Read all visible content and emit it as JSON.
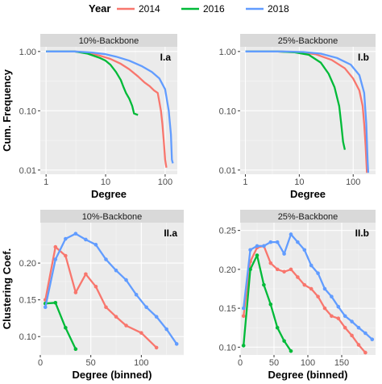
{
  "legend": {
    "title": "Year",
    "entries": [
      {
        "label": "2014",
        "color": "#F8766D"
      },
      {
        "label": "2016",
        "color": "#00BA38"
      },
      {
        "label": "2018",
        "color": "#619CFF"
      }
    ]
  },
  "chart_data": [
    {
      "type": "line",
      "strip": "10%-Backbone",
      "panel_label": "I.a",
      "xlabel": "Degree",
      "ylabel": "Cum. Frequency",
      "xscale": "log",
      "yscale": "log",
      "xlim": [
        0.8,
        160
      ],
      "ylim": [
        0.0085,
        1.2
      ],
      "xticks": [
        1,
        10,
        100
      ],
      "xtick_labels": [
        "1",
        "10",
        "100"
      ],
      "yticks": [
        0.01,
        0.1,
        1
      ],
      "ytick_labels": [
        "0.01",
        "0.10",
        "1.00"
      ],
      "points": false,
      "series": [
        {
          "name": "2014",
          "color": "#F8766D",
          "x": [
            1,
            3,
            5,
            8,
            12,
            18,
            25,
            35,
            45,
            55,
            65,
            75,
            80,
            85,
            90,
            95,
            100,
            105
          ],
          "y": [
            1,
            1,
            0.95,
            0.85,
            0.75,
            0.62,
            0.5,
            0.38,
            0.3,
            0.26,
            0.22,
            0.2,
            0.14,
            0.1,
            0.06,
            0.03,
            0.015,
            0.011
          ]
        },
        {
          "name": "2016",
          "color": "#00BA38",
          "x": [
            1,
            3,
            5,
            8,
            10,
            12,
            15,
            18,
            20,
            22,
            25,
            28,
            30,
            35
          ],
          "y": [
            1,
            1,
            0.92,
            0.78,
            0.7,
            0.6,
            0.45,
            0.33,
            0.25,
            0.2,
            0.16,
            0.12,
            0.09,
            0.085
          ]
        },
        {
          "name": "2018",
          "color": "#619CFF",
          "x": [
            1,
            3,
            6,
            10,
            15,
            25,
            40,
            60,
            80,
            100,
            115,
            125,
            130,
            135
          ],
          "y": [
            1,
            1,
            0.96,
            0.9,
            0.82,
            0.7,
            0.57,
            0.45,
            0.35,
            0.23,
            0.1,
            0.04,
            0.015,
            0.013
          ]
        }
      ]
    },
    {
      "type": "line",
      "strip": "25%-Backbone",
      "panel_label": "I.b",
      "xlabel": "Degree",
      "ylabel": "",
      "xscale": "log",
      "yscale": "log",
      "xlim": [
        0.8,
        260
      ],
      "ylim": [
        0.0085,
        1.2
      ],
      "xticks": [
        1,
        10,
        100
      ],
      "xtick_labels": [
        "1",
        "10",
        "100"
      ],
      "yticks": [
        0.01,
        0.1,
        1
      ],
      "ytick_labels": [
        "0.01",
        "0.10",
        "1.00"
      ],
      "points": false,
      "series": [
        {
          "name": "2014",
          "color": "#F8766D",
          "x": [
            1,
            4,
            10,
            20,
            40,
            70,
            100,
            130,
            150,
            160,
            170,
            175,
            180
          ],
          "y": [
            1,
            1,
            0.97,
            0.9,
            0.72,
            0.52,
            0.35,
            0.22,
            0.12,
            0.06,
            0.025,
            0.015,
            0.009
          ]
        },
        {
          "name": "2016",
          "color": "#00BA38",
          "x": [
            1,
            4,
            8,
            15,
            25,
            35,
            45,
            55,
            60,
            65,
            70
          ],
          "y": [
            1,
            1,
            0.97,
            0.88,
            0.65,
            0.42,
            0.25,
            0.12,
            0.06,
            0.03,
            0.022
          ]
        },
        {
          "name": "2018",
          "color": "#619CFF",
          "x": [
            1,
            5,
            12,
            25,
            50,
            90,
            130,
            160,
            175,
            185,
            190
          ],
          "y": [
            1,
            1,
            0.98,
            0.92,
            0.78,
            0.6,
            0.4,
            0.2,
            0.06,
            0.015,
            0.009
          ]
        }
      ]
    },
    {
      "type": "line",
      "strip": "10%-Backbone",
      "panel_label": "II.a",
      "xlabel": "Degree (binned)",
      "ylabel": "Clustering Coef.",
      "xscale": "linear",
      "yscale": "linear",
      "xlim": [
        0,
        142
      ],
      "ylim": [
        0.075,
        0.255
      ],
      "xticks": [
        0,
        50,
        100
      ],
      "xtick_labels": [
        "0",
        "50",
        "100"
      ],
      "yticks": [
        0.1,
        0.15,
        0.2
      ],
      "ytick_labels": [
        "0.10",
        "0.15",
        "0.20"
      ],
      "points": true,
      "series": [
        {
          "name": "2014",
          "color": "#F8766D",
          "x": [
            5,
            15,
            25,
            35,
            45,
            55,
            65,
            75,
            85,
            100,
            115
          ],
          "y": [
            0.15,
            0.222,
            0.21,
            0.16,
            0.185,
            0.168,
            0.14,
            0.127,
            0.115,
            0.105,
            0.085
          ]
        },
        {
          "name": "2016",
          "color": "#00BA38",
          "x": [
            5,
            15,
            25,
            35
          ],
          "y": [
            0.145,
            0.146,
            0.112,
            0.083
          ]
        },
        {
          "name": "2018",
          "color": "#619CFF",
          "x": [
            5,
            15,
            25,
            35,
            45,
            55,
            65,
            75,
            85,
            95,
            105,
            115,
            125,
            135
          ],
          "y": [
            0.14,
            0.205,
            0.233,
            0.24,
            0.232,
            0.225,
            0.205,
            0.19,
            0.177,
            0.157,
            0.14,
            0.127,
            0.11,
            0.09
          ]
        }
      ]
    },
    {
      "type": "line",
      "strip": "25%-Backbone",
      "panel_label": "II.b",
      "xlabel": "Degree (binned)",
      "ylabel": "",
      "xscale": "linear",
      "yscale": "linear",
      "xlim": [
        0,
        200
      ],
      "ylim": [
        0.09,
        0.26
      ],
      "xticks": [
        0,
        50,
        100,
        150
      ],
      "xtick_labels": [
        "0",
        "50",
        "100",
        "150"
      ],
      "yticks": [
        0.1,
        0.15,
        0.2,
        0.25
      ],
      "ytick_labels": [
        "0.10",
        "0.15",
        "0.20",
        "0.25"
      ],
      "points": true,
      "series": [
        {
          "name": "2014",
          "color": "#F8766D",
          "x": [
            5,
            15,
            25,
            35,
            45,
            55,
            65,
            75,
            85,
            95,
            105,
            115,
            125,
            135,
            145,
            155,
            165,
            175,
            185
          ],
          "y": [
            0.14,
            0.21,
            0.228,
            0.23,
            0.208,
            0.2,
            0.197,
            0.2,
            0.19,
            0.18,
            0.175,
            0.165,
            0.15,
            0.14,
            0.137,
            0.125,
            0.115,
            0.103,
            0.093
          ]
        },
        {
          "name": "2016",
          "color": "#00BA38",
          "x": [
            5,
            15,
            25,
            35,
            45,
            55,
            65,
            75
          ],
          "y": [
            0.102,
            0.2,
            0.218,
            0.18,
            0.155,
            0.125,
            0.108,
            0.095
          ]
        },
        {
          "name": "2018",
          "color": "#619CFF",
          "x": [
            5,
            15,
            25,
            35,
            45,
            55,
            65,
            75,
            85,
            95,
            105,
            115,
            125,
            135,
            145,
            155,
            165,
            175,
            185,
            195
          ],
          "y": [
            0.15,
            0.225,
            0.23,
            0.23,
            0.235,
            0.235,
            0.22,
            0.245,
            0.235,
            0.225,
            0.205,
            0.195,
            0.175,
            0.165,
            0.152,
            0.14,
            0.133,
            0.125,
            0.118,
            0.11
          ]
        }
      ]
    }
  ]
}
